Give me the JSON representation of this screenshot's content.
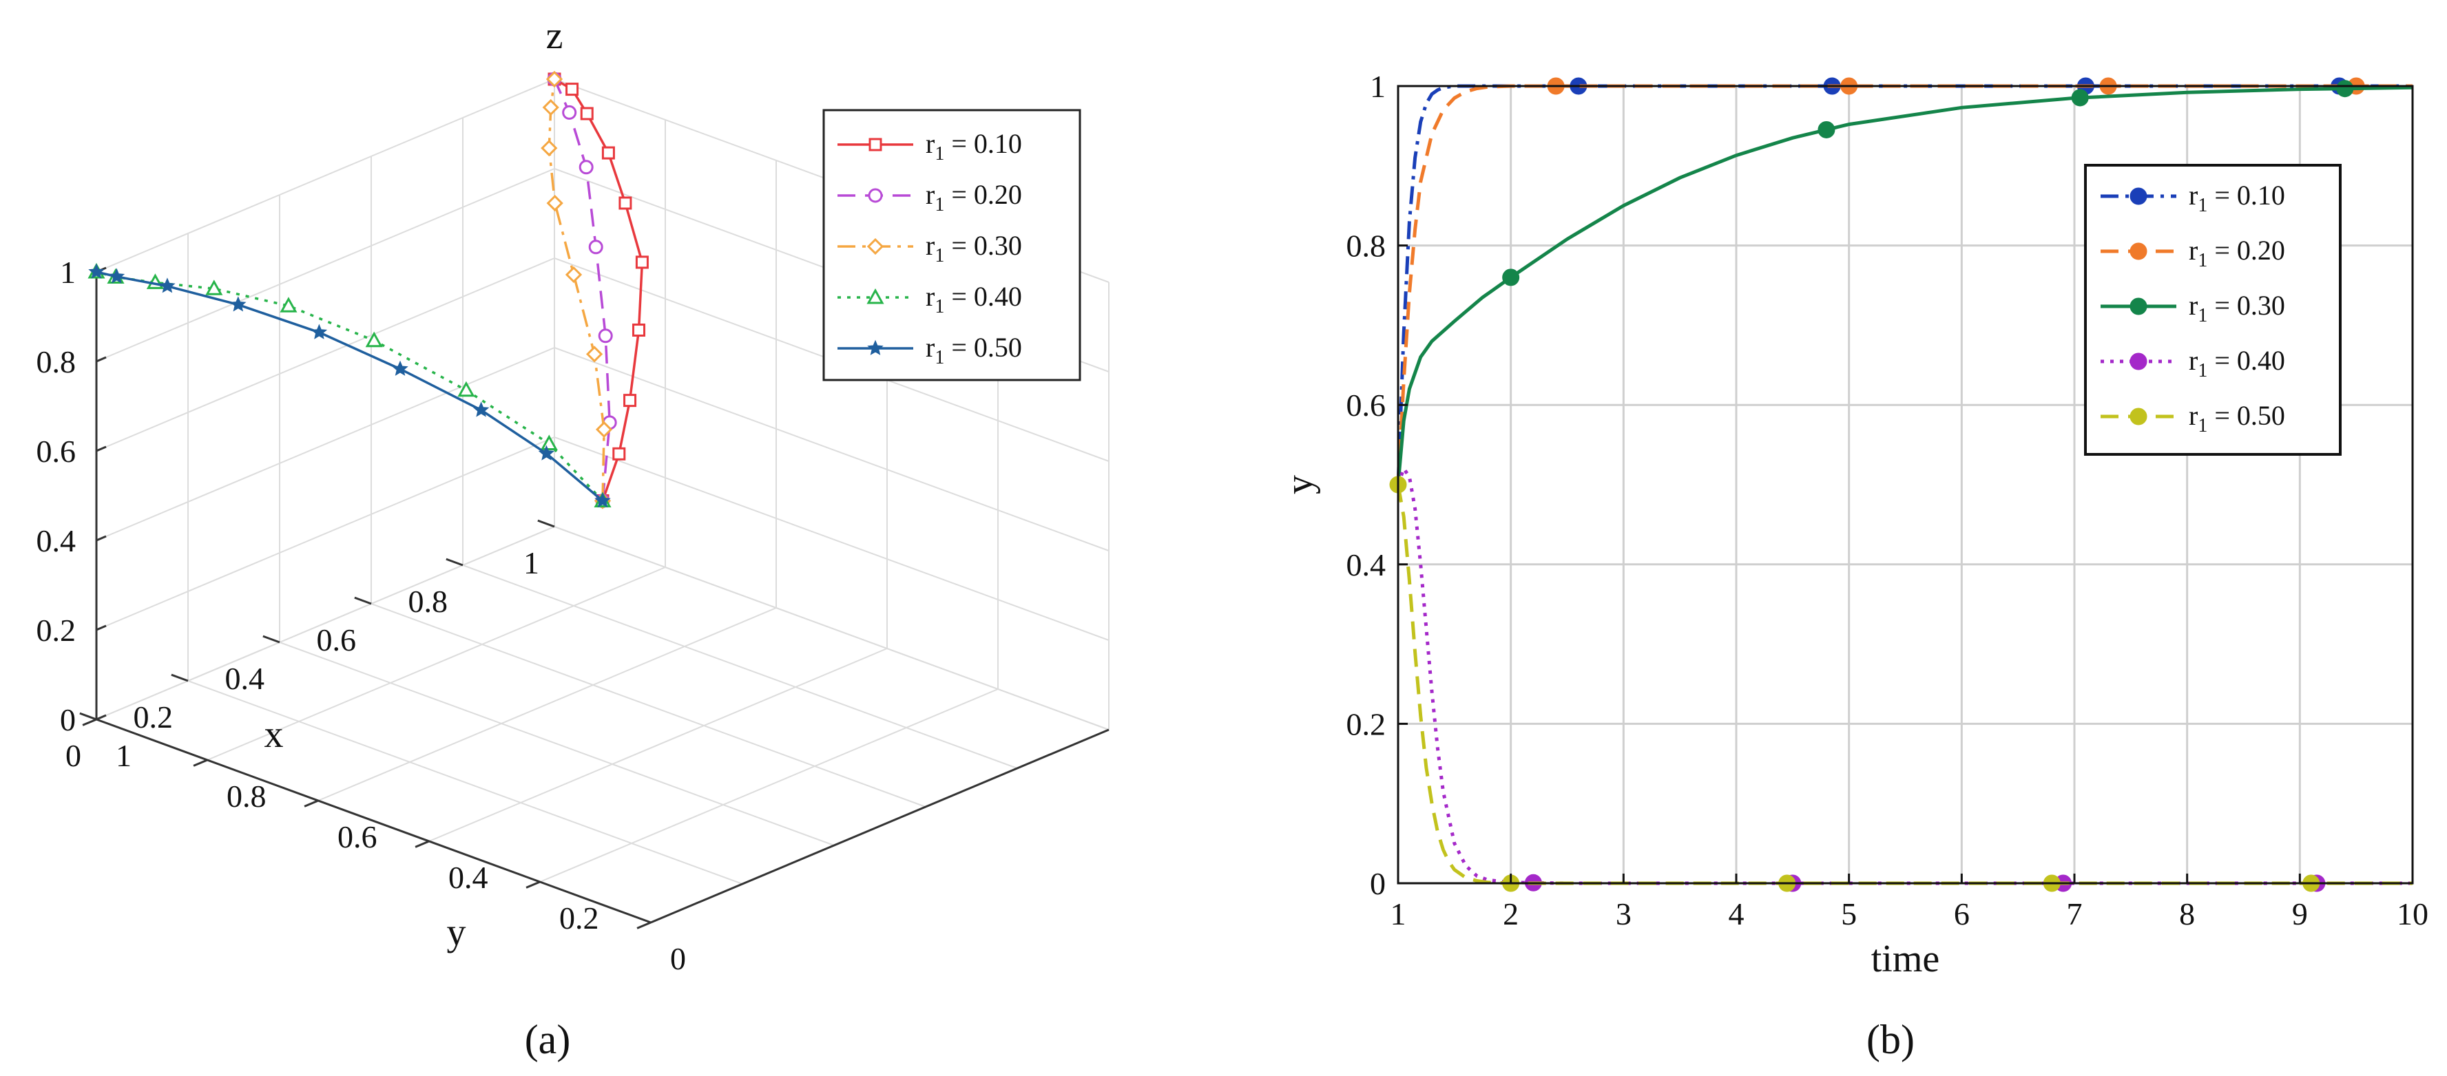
{
  "panel_a_label": "(a)",
  "panel_b_label": "(b)",
  "chart_data": [
    {
      "type": "scatter",
      "projection": "3d",
      "panel": "a",
      "title": "",
      "xlabel": "x",
      "ylabel": "y",
      "zlabel": "z",
      "xlim": [
        0,
        1
      ],
      "ylim": [
        0,
        1
      ],
      "zlim": [
        0,
        1
      ],
      "x_ticks": [
        "0",
        "0.2",
        "0.4",
        "0.6",
        "0.8",
        "1"
      ],
      "y_ticks": [
        "0",
        "0.2",
        "0.4",
        "0.6",
        "0.8",
        "1"
      ],
      "z_ticks": [
        "0",
        "0.2",
        "0.4",
        "0.6",
        "0.8",
        "1"
      ],
      "grid": true,
      "legend_position": "top-right",
      "legend_prefix": "r",
      "legend_sub": "1",
      "series": [
        {
          "name": "r1 = 0.10",
          "label": " = 0.10",
          "color": "#e8383d",
          "marker": "square",
          "dash": "solid",
          "x": [
            0.5,
            0.56,
            0.62,
            0.7,
            0.78,
            0.84,
            0.9,
            0.95,
            0.99,
            1.0
          ],
          "y": [
            0.5,
            0.52,
            0.55,
            0.6,
            0.66,
            0.74,
            0.82,
            0.9,
            0.96,
            1.0
          ],
          "z": [
            0.5,
            0.57,
            0.65,
            0.75,
            0.84,
            0.91,
            0.96,
            0.99,
            1.0,
            1.0
          ]
        },
        {
          "name": "r1 = 0.20",
          "label": " = 0.20",
          "color": "#b84ad6",
          "marker": "circle",
          "dash": "dash",
          "x": [
            0.5,
            0.6,
            0.7,
            0.8,
            0.9,
            0.96,
            1.0
          ],
          "y": [
            0.5,
            0.57,
            0.66,
            0.76,
            0.86,
            0.94,
            1.0
          ],
          "z": [
            0.5,
            0.6,
            0.71,
            0.82,
            0.91,
            0.97,
            1.0
          ]
        },
        {
          "name": "r1 = 0.30",
          "label": " = 0.30",
          "color": "#f5a742",
          "marker": "diamond",
          "dash": "dashdot",
          "x": [
            0.5,
            0.6,
            0.7,
            0.8,
            0.88,
            0.94,
            0.98,
            1.0
          ],
          "y": [
            0.5,
            0.58,
            0.68,
            0.8,
            0.9,
            0.96,
            0.99,
            1.0
          ],
          "z": [
            0.5,
            0.58,
            0.66,
            0.74,
            0.82,
            0.89,
            0.95,
            1.0
          ]
        },
        {
          "name": "r1 = 0.40",
          "label": " = 0.40",
          "color": "#27b44a",
          "marker": "triangle",
          "dash": "dotted",
          "x": [
            0.5,
            0.48,
            0.42,
            0.34,
            0.25,
            0.16,
            0.08,
            0.03,
            0.0
          ],
          "y": [
            0.5,
            0.58,
            0.68,
            0.78,
            0.86,
            0.92,
            0.96,
            0.99,
            1.0
          ],
          "z": [
            0.5,
            0.6,
            0.7,
            0.8,
            0.88,
            0.93,
            0.96,
            0.98,
            1.0
          ]
        },
        {
          "name": "r1 = 0.50",
          "label": " = 0.50",
          "color": "#1f5f9e",
          "marker": "star",
          "dash": "solid",
          "x": [
            0.5,
            0.45,
            0.38,
            0.3,
            0.22,
            0.14,
            0.07,
            0.02,
            0.0
          ],
          "y": [
            0.5,
            0.56,
            0.62,
            0.7,
            0.78,
            0.86,
            0.93,
            0.98,
            1.0
          ],
          "z": [
            0.5,
            0.6,
            0.7,
            0.79,
            0.87,
            0.93,
            0.97,
            0.99,
            1.0
          ]
        }
      ]
    },
    {
      "type": "line",
      "panel": "b",
      "title": "",
      "xlabel": "time",
      "ylabel": "y",
      "xlim": [
        1,
        10
      ],
      "ylim": [
        0,
        1
      ],
      "x_ticks": [
        "1",
        "2",
        "3",
        "4",
        "5",
        "6",
        "7",
        "8",
        "9",
        "10"
      ],
      "y_ticks": [
        "0",
        "0.2",
        "0.4",
        "0.6",
        "0.8",
        "1"
      ],
      "grid": true,
      "legend_position": "top-right",
      "legend_prefix": "r",
      "legend_sub": "1",
      "series": [
        {
          "name": "r1 = 0.10",
          "label": " = 0.10",
          "color": "#1a3fb8",
          "dash": "dashdot",
          "x": [
            1,
            1.05,
            1.1,
            1.15,
            1.2,
            1.25,
            1.3,
            1.35,
            1.4,
            1.5,
            1.7,
            2,
            3,
            4,
            5,
            6,
            7,
            8,
            9,
            10
          ],
          "y": [
            0.5,
            0.69,
            0.83,
            0.91,
            0.955,
            0.978,
            0.99,
            0.995,
            0.998,
            1,
            1,
            1,
            1,
            1,
            1,
            1,
            1,
            1,
            1,
            1
          ],
          "markers_x": [
            2.6,
            4.85,
            7.1,
            9.35
          ]
        },
        {
          "name": "r1 = 0.20",
          "label": " = 0.20",
          "color": "#f07a2a",
          "dash": "dash",
          "x": [
            1,
            1.05,
            1.1,
            1.15,
            1.2,
            1.3,
            1.4,
            1.5,
            1.6,
            1.7,
            1.8,
            2,
            3,
            4,
            5,
            6,
            7,
            8,
            9,
            10
          ],
          "y": [
            0.5,
            0.63,
            0.74,
            0.82,
            0.88,
            0.94,
            0.97,
            0.985,
            0.993,
            0.997,
            0.999,
            1,
            1,
            1,
            1,
            1,
            1,
            1,
            1,
            1
          ],
          "markers_x": [
            2.4,
            5.0,
            7.3,
            9.5
          ]
        },
        {
          "name": "r1 = 0.30",
          "label": " = 0.30",
          "color": "#14854a",
          "dash": "solid",
          "x": [
            1,
            1.05,
            1.1,
            1.2,
            1.3,
            1.5,
            1.75,
            2,
            2.5,
            3,
            3.5,
            4,
            4.5,
            5,
            6,
            7,
            8,
            9,
            10
          ],
          "y": [
            0.5,
            0.58,
            0.62,
            0.66,
            0.68,
            0.705,
            0.735,
            0.76,
            0.808,
            0.85,
            0.885,
            0.913,
            0.935,
            0.952,
            0.973,
            0.985,
            0.992,
            0.996,
            0.998
          ],
          "markers_x": [
            2.0,
            4.8,
            7.05,
            9.4
          ]
        },
        {
          "name": "r1 = 0.40",
          "label": " = 0.40",
          "color": "#a428c9",
          "dash": "dotted",
          "x": [
            1,
            1.05,
            1.1,
            1.15,
            1.2,
            1.25,
            1.3,
            1.35,
            1.4,
            1.5,
            1.6,
            1.7,
            1.8,
            2,
            2.5,
            3,
            4,
            5,
            6,
            7,
            8,
            9,
            10
          ],
          "y": [
            0.5,
            0.52,
            0.51,
            0.47,
            0.4,
            0.32,
            0.24,
            0.17,
            0.115,
            0.05,
            0.022,
            0.009,
            0.004,
            0.001,
            0,
            0,
            0,
            0,
            0,
            0,
            0,
            0,
            0
          ],
          "markers_x": [
            2.2,
            4.5,
            6.9,
            9.15
          ]
        },
        {
          "name": "r1 = 0.50",
          "label": " = 0.50",
          "color": "#c2c21d",
          "dash": "dash",
          "x": [
            1,
            1.05,
            1.1,
            1.15,
            1.2,
            1.25,
            1.3,
            1.35,
            1.4,
            1.45,
            1.5,
            1.6,
            1.7,
            1.8,
            2,
            3,
            4,
            5,
            6,
            7,
            8,
            9,
            10
          ],
          "y": [
            0.5,
            0.46,
            0.38,
            0.29,
            0.21,
            0.145,
            0.1,
            0.065,
            0.042,
            0.027,
            0.017,
            0.007,
            0.003,
            0.001,
            0,
            0,
            0,
            0,
            0,
            0,
            0,
            0,
            0
          ],
          "markers_x": [
            1.0,
            2.0,
            4.45,
            6.8,
            9.1
          ]
        }
      ]
    }
  ]
}
